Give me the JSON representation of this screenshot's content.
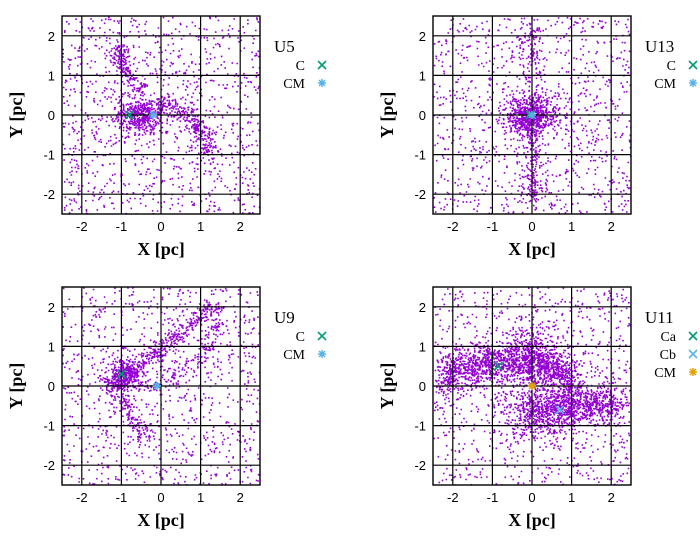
{
  "chart_data": [
    {
      "type": "scatter",
      "title": "U5",
      "xlabel": "X [pc]",
      "ylabel": "Y [pc]",
      "xlim": [
        -2.5,
        2.5
      ],
      "ylim": [
        -2.5,
        2.5
      ],
      "xticks": [
        -2,
        -1,
        0,
        1,
        2
      ],
      "yticks": [
        -2,
        -1,
        0,
        1,
        2
      ],
      "grid": true,
      "legend_position": "right",
      "point_color": "#9400d3",
      "markers": [
        {
          "label": "C",
          "symbol": "x",
          "color": "#009e73",
          "x": -0.8,
          "y": 0.0
        },
        {
          "label": "CM",
          "symbol": "*",
          "color": "#56b4e9",
          "x": -0.2,
          "y": 0.0
        }
      ]
    },
    {
      "type": "scatter",
      "title": "U13",
      "xlabel": "X [pc]",
      "ylabel": "Y [pc]",
      "xlim": [
        -2.5,
        2.5
      ],
      "ylim": [
        -2.5,
        2.5
      ],
      "xticks": [
        -2,
        -1,
        0,
        1,
        2
      ],
      "yticks": [
        -2,
        -1,
        0,
        1,
        2
      ],
      "grid": true,
      "legend_position": "right",
      "point_color": "#9400d3",
      "markers": [
        {
          "label": "C",
          "symbol": "x",
          "color": "#009e73",
          "x": -0.05,
          "y": 0.0
        },
        {
          "label": "CM",
          "symbol": "*",
          "color": "#56b4e9",
          "x": 0.0,
          "y": 0.0
        }
      ]
    },
    {
      "type": "scatter",
      "title": "U9",
      "xlabel": "X [pc]",
      "ylabel": "Y [pc]",
      "xlim": [
        -2.5,
        2.5
      ],
      "ylim": [
        -2.5,
        2.5
      ],
      "xticks": [
        -2,
        -1,
        0,
        1,
        2
      ],
      "yticks": [
        -2,
        -1,
        0,
        1,
        2
      ],
      "grid": true,
      "legend_position": "right",
      "point_color": "#9400d3",
      "markers": [
        {
          "label": "C",
          "symbol": "x",
          "color": "#009e73",
          "x": -1.0,
          "y": 0.3
        },
        {
          "label": "CM",
          "symbol": "*",
          "color": "#56b4e9",
          "x": -0.1,
          "y": 0.0
        }
      ]
    },
    {
      "type": "scatter",
      "title": "U11",
      "xlabel": "X [pc]",
      "ylabel": "Y [pc]",
      "xlim": [
        -2.5,
        2.5
      ],
      "ylim": [
        -2.5,
        2.5
      ],
      "xticks": [
        -2,
        -1,
        0,
        1,
        2
      ],
      "yticks": [
        -2,
        -1,
        0,
        1,
        2
      ],
      "grid": true,
      "legend_position": "right",
      "point_color": "#9400d3",
      "markers": [
        {
          "label": "Ca",
          "symbol": "x",
          "color": "#009e73",
          "x": -0.85,
          "y": 0.5
        },
        {
          "label": "Cb",
          "symbol": "x",
          "color": "#56b4e9",
          "x": 0.7,
          "y": -0.6
        },
        {
          "label": "CM",
          "symbol": "*",
          "color": "#e69f00",
          "x": 0.0,
          "y": 0.0
        }
      ]
    }
  ]
}
